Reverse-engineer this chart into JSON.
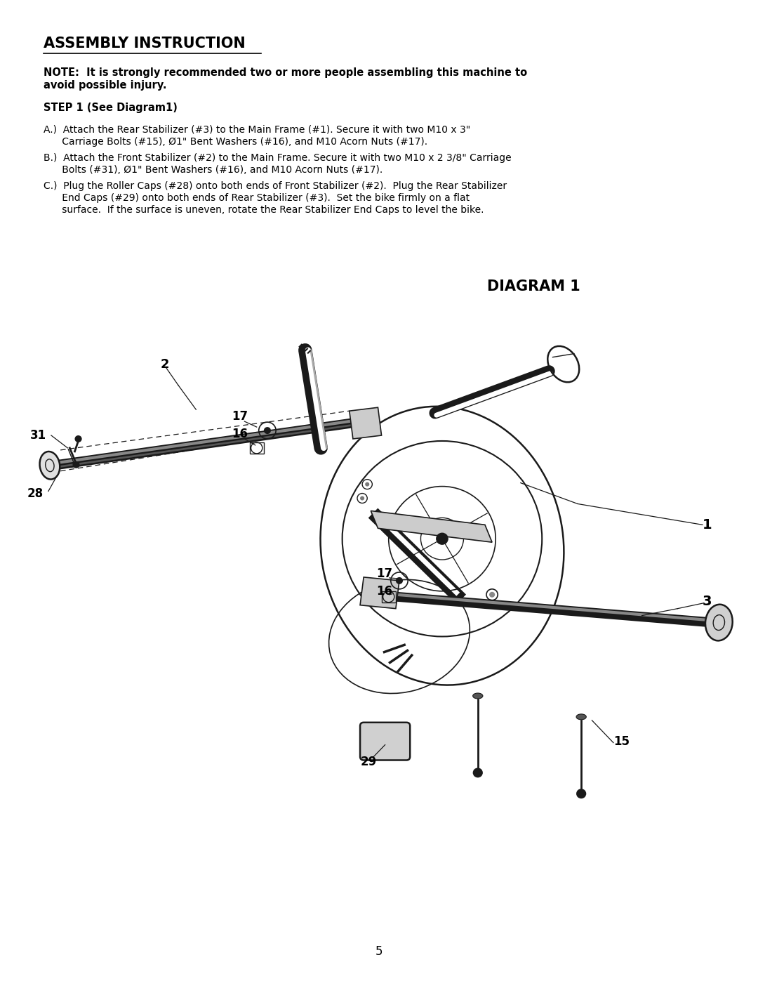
{
  "page_bg": "#ffffff",
  "title": "ASSEMBLY INSTRUCTION",
  "note_line1": "NOTE:  It is strongly recommended two or more people assembling this machine to",
  "note_line2": "avoid possible injury.",
  "step": "STEP 1 (See Diagram1)",
  "instr_A_line1": "A.)  Attach the Rear Stabilizer (#3) to the Main Frame (#1). Secure it with two M10 x 3\"",
  "instr_A_line2": "      Carriage Bolts (#15), Ø1\" Bent Washers (#16), and M10 Acorn Nuts (#17).",
  "instr_B_line1": "B.)  Attach the Front Stabilizer (#2) to the Main Frame. Secure it with two M10 x 2 3/8\" Carriage",
  "instr_B_line2": "      Bolts (#31), Ø1\" Bent Washers (#16), and M10 Acorn Nuts (#17).",
  "instr_C_line1": "C.)  Plug the Roller Caps (#28) onto both ends of Front Stabilizer (#2).  Plug the Rear Stabilizer",
  "instr_C_line2": "      End Caps (#29) onto both ends of Rear Stabilizer (#3).  Set the bike firmly on a flat",
  "instr_C_line3": "      surface.  If the surface is uneven, rotate the Rear Stabilizer End Caps to level the bike.",
  "diagram_title": "DIAGRAM 1",
  "page_number": "5",
  "text_color": "#000000",
  "title_fontsize": 15,
  "note_fontsize": 10.5,
  "step_fontsize": 10.5,
  "instr_fontsize": 10,
  "diagram_title_fontsize": 15
}
